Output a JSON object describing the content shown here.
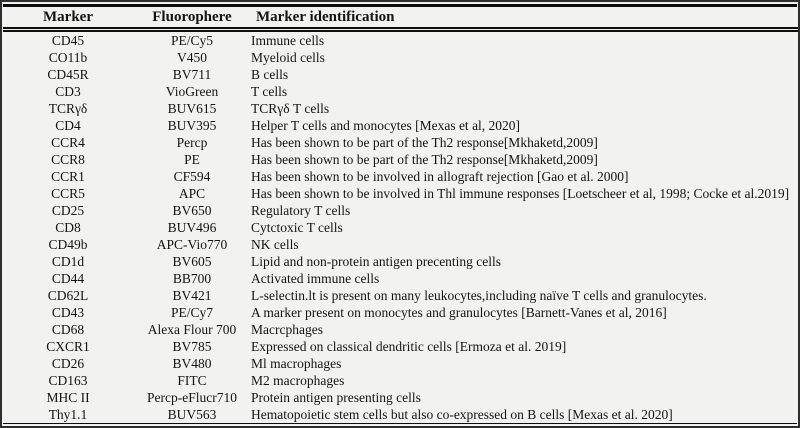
{
  "table": {
    "columns": [
      "Marker",
      "Fluorophere",
      "Marker identification"
    ],
    "rows": [
      [
        "CD45",
        "PE/Cy5",
        "Immune cells"
      ],
      [
        "CO11b",
        "V450",
        "Myeloid cells"
      ],
      [
        "CD45R",
        "BV711",
        "B cells"
      ],
      [
        "CD3",
        "VioGreen",
        "T cells"
      ],
      [
        "TCRγδ",
        "BUV615",
        "TCRγδ T cells"
      ],
      [
        "CD4",
        "BUV395",
        "Helper T cells and monocytes [Mexas et al, 2020]"
      ],
      [
        "CCR4",
        "Percp",
        "Has been shown to be part of the Th2 response[Mkhaketd,2009]"
      ],
      [
        "CCR8",
        "PE",
        "Has been shown to be part of the Th2 response[Mkhaketd,2009]"
      ],
      [
        "CCR1",
        "CF594",
        "Has been shown to be involved in allograft rejection [Gao et al. 2000]"
      ],
      [
        "CCR5",
        "APC",
        "Has been shown to be involved in Thl immune responses [Loetscheer et al, 1998; Cocke et al.2019]"
      ],
      [
        "CD25",
        "BV650",
        "Regulatory T cells"
      ],
      [
        "CD8",
        "BUV496",
        "Cytctoxic T cells"
      ],
      [
        "CD49b",
        "APC-Vio770",
        "NK cells"
      ],
      [
        "CD1d",
        "BV605",
        "Lipid and non-protein antigen precenting cells"
      ],
      [
        "CD44",
        "BB700",
        "Activated immune cells"
      ],
      [
        "CD62L",
        "BV421",
        "L-selectin.lt is present on many leukocytes,including naïve T cells and granulocytes."
      ],
      [
        "CD43",
        "PE/Cy7",
        "A marker present on monocytes and granulocytes [Barnett-Vanes et al, 2016]"
      ],
      [
        "CD68",
        "Alexa Flour 700",
        "Macrcphages"
      ],
      [
        "CXCR1",
        "BV785",
        "Expressed on classical dendritic cells [Ermoza et al. 2019]"
      ],
      [
        "CD26",
        "BV480",
        "Ml macrophages"
      ],
      [
        "CD163",
        "FITC",
        "M2 macrophages"
      ],
      [
        "MHC II",
        "Percp-eFlucr710",
        "Protein antigen presenting cells"
      ],
      [
        "Thy1.1",
        "BUV563",
        "Hematopoietic stem cells but also co-expressed on B cells [Mexas et al. 2020]"
      ]
    ]
  }
}
